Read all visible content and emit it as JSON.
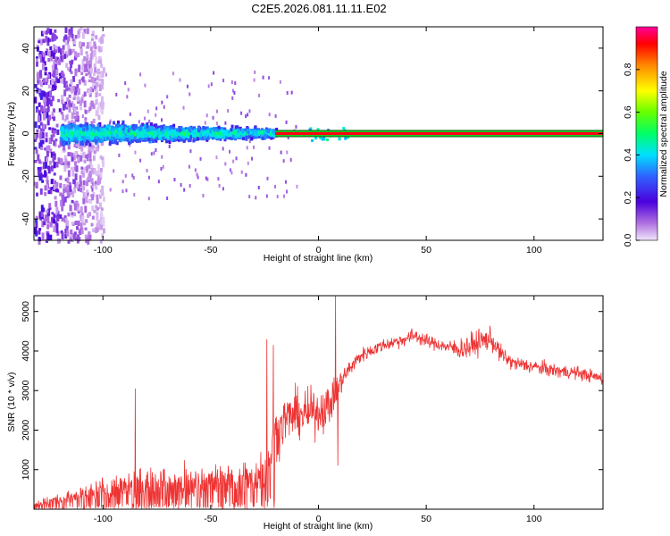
{
  "title": "C2E5.2026.081.11.11.E02",
  "chart_data": [
    {
      "type": "heatmap",
      "name": "spectrogram",
      "xlabel": "Height of straight line (km)",
      "ylabel": "Frequency (Hz)",
      "xlim": [
        -132,
        132
      ],
      "ylim": [
        -50,
        50
      ],
      "xticks": [
        -100,
        -50,
        0,
        50,
        100
      ],
      "yticks": [
        -40,
        -20,
        0,
        20,
        40
      ],
      "colorbar": {
        "label": "Normalized spectral amplitude",
        "range": [
          0,
          1
        ],
        "ticks": [
          "0.0",
          "0.2",
          "0.4",
          "0.6",
          "0.8"
        ]
      },
      "features": [
        {
          "description_value": "scatter region",
          "x_range": [
            -132,
            -100
          ],
          "freq_range": [
            -50,
            50
          ],
          "amplitude": 0.15
        },
        {
          "description_value": "noisy band",
          "x_range": [
            -120,
            -20
          ],
          "freq_range": [
            -8,
            8
          ],
          "amplitude": 0.35
        },
        {
          "description_value": "tone line",
          "x_range": [
            -20,
            132
          ],
          "freq": 0,
          "amplitude": 1.0
        }
      ]
    },
    {
      "type": "line",
      "name": "snr",
      "xlabel": "Height of straight line (km)",
      "ylabel": "SNR (10 * v/v)",
      "xlim": [
        -132,
        132
      ],
      "ylim": [
        0,
        5400
      ],
      "xticks": [
        -100,
        -50,
        0,
        50,
        100
      ],
      "yticks": [
        1000,
        2000,
        3000,
        4000,
        5000
      ],
      "color": "#ee3333",
      "envelope": {
        "x": [
          -132,
          -120,
          -110,
          -100,
          -90,
          -80,
          -70,
          -60,
          -50,
          -40,
          -30,
          -25,
          -20,
          -15,
          -10,
          -5,
          0,
          5,
          10,
          15,
          20,
          30,
          40,
          45,
          50,
          60,
          65,
          70,
          75,
          80,
          85,
          90,
          100,
          110,
          120,
          132
        ],
        "mean": [
          150,
          250,
          350,
          500,
          600,
          650,
          650,
          650,
          700,
          750,
          800,
          1000,
          1900,
          2300,
          2400,
          2400,
          2500,
          2600,
          3200,
          3600,
          3900,
          4150,
          4300,
          4400,
          4250,
          4100,
          4050,
          4100,
          4250,
          4300,
          3900,
          3700,
          3600,
          3500,
          3450,
          3300
        ],
        "noise": [
          120,
          150,
          250,
          350,
          450,
          500,
          500,
          450,
          450,
          450,
          500,
          600,
          700,
          700,
          650,
          650,
          650,
          600,
          350,
          250,
          200,
          180,
          200,
          220,
          180,
          180,
          300,
          350,
          350,
          300,
          250,
          200,
          200,
          200,
          180,
          180
        ]
      },
      "spikes": [
        {
          "x": -85,
          "value": 3050
        },
        {
          "x": -24,
          "value": 4300
        },
        {
          "x": -21,
          "value": 4150
        },
        {
          "x": 8,
          "value": 5400
        },
        {
          "x": 9,
          "value": 1100
        }
      ]
    }
  ]
}
